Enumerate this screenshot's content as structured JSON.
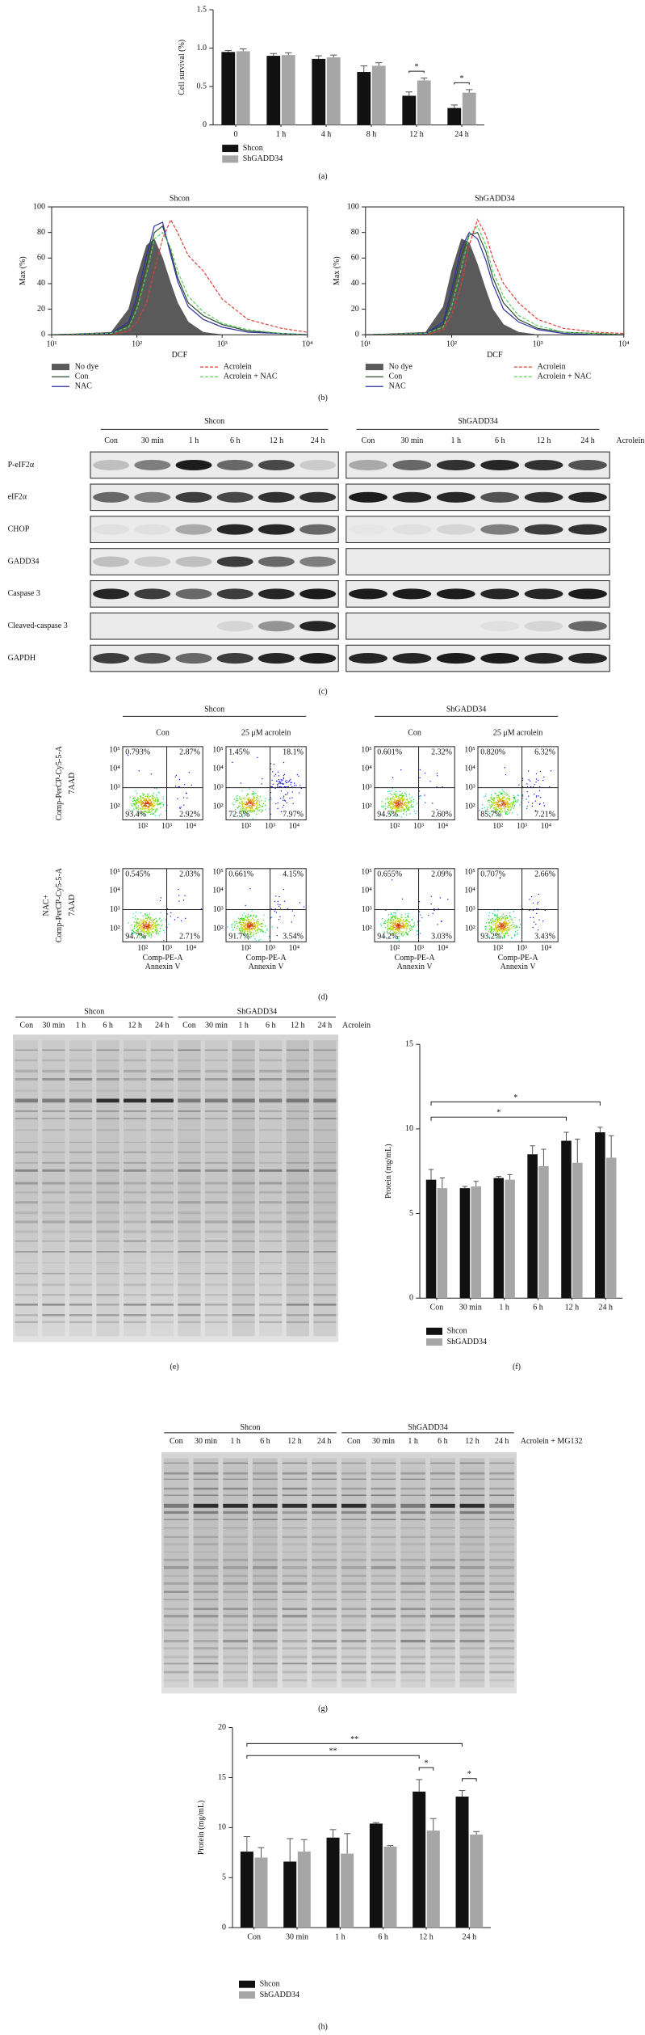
{
  "chart_data": [
    {
      "type": "bar",
      "ylabel": "Cell survival (%)",
      "categories": [
        "0",
        "1 h",
        "4 h",
        "8 h",
        "12 h",
        "24 h"
      ],
      "series": [
        {
          "name": "Shcon",
          "color": "#111111",
          "values": [
            0.95,
            0.9,
            0.86,
            0.69,
            0.38,
            0.22
          ],
          "errors": [
            0.02,
            0.03,
            0.04,
            0.08,
            0.05,
            0.04
          ]
        },
        {
          "name": "ShGADD34",
          "color": "#a6a6a6",
          "values": [
            0.96,
            0.91,
            0.88,
            0.77,
            0.58,
            0.42
          ],
          "errors": [
            0.03,
            0.03,
            0.03,
            0.04,
            0.03,
            0.04
          ]
        }
      ],
      "ylim": [
        0,
        1.5
      ],
      "yticks": [
        0,
        0.5,
        {
          "value": 1,
          "label": "1.0"
        },
        1.5
      ],
      "significance": [
        {
          "from": "12 h",
          "to": "12 h",
          "label": "*"
        },
        {
          "from": "24 h",
          "to": "24 h",
          "label": "*"
        }
      ]
    },
    {
      "type": "line",
      "title": "Shcon",
      "xlabel": "DCF",
      "ylabel": "Max (%)",
      "xscale": "log",
      "x": [
        10,
        50,
        80,
        100,
        130,
        160,
        200,
        250,
        300,
        400,
        600,
        1000,
        2000,
        5000,
        10000
      ],
      "xlim": [
        10,
        10000
      ],
      "xticks": [
        {
          "value": 10,
          "label": "10¹"
        },
        {
          "value": 100,
          "label": "10²"
        },
        {
          "value": 1000,
          "label": "10³"
        },
        {
          "value": 10000,
          "label": "10⁴"
        }
      ],
      "ylim": [
        0,
        100
      ],
      "yticks": [
        0,
        20,
        40,
        60,
        80,
        100
      ],
      "series": [
        {
          "name": "No dye",
          "color": "#5a5a5a",
          "fill": true,
          "values": [
            0,
            2,
            20,
            45,
            70,
            75,
            60,
            40,
            25,
            10,
            2,
            0,
            0,
            0,
            0
          ]
        },
        {
          "name": "Con",
          "color": "#2e4d2e",
          "values": [
            0,
            1,
            8,
            25,
            55,
            80,
            85,
            65,
            45,
            25,
            15,
            8,
            3,
            1,
            0
          ]
        },
        {
          "name": "NAC",
          "color": "#2b2f9e",
          "values": [
            0,
            1,
            10,
            30,
            62,
            85,
            88,
            62,
            42,
            22,
            12,
            6,
            2,
            1,
            0
          ]
        },
        {
          "name": "Acrolein",
          "color": "#e0403a",
          "dash": true,
          "values": [
            0,
            0,
            3,
            10,
            25,
            50,
            75,
            90,
            80,
            62,
            50,
            28,
            12,
            5,
            2
          ]
        },
        {
          "name": "Acrolein + NAC",
          "color": "#5ccf5c",
          "dash": true,
          "values": [
            0,
            1,
            6,
            20,
            48,
            75,
            80,
            68,
            50,
            30,
            18,
            9,
            4,
            1,
            0
          ]
        }
      ]
    },
    {
      "type": "line",
      "title": "ShGADD34",
      "xlabel": "DCF",
      "ylabel": "Max (%)",
      "xscale": "log",
      "x": [
        10,
        50,
        80,
        100,
        130,
        160,
        200,
        250,
        300,
        400,
        600,
        1000,
        2000,
        5000,
        10000
      ],
      "xlim": [
        10,
        10000
      ],
      "xticks": [
        {
          "value": 10,
          "label": "10¹"
        },
        {
          "value": 100,
          "label": "10²"
        },
        {
          "value": 1000,
          "label": "10³"
        },
        {
          "value": 10000,
          "label": "10⁴"
        }
      ],
      "ylim": [
        0,
        100
      ],
      "yticks": [
        0,
        20,
        40,
        60,
        80,
        100
      ],
      "series": [
        {
          "name": "No dye",
          "color": "#5a5a5a",
          "fill": true,
          "values": [
            0,
            2,
            22,
            50,
            75,
            72,
            55,
            35,
            20,
            8,
            2,
            0,
            0,
            0,
            0
          ]
        },
        {
          "name": "Con",
          "color": "#2e4d2e",
          "values": [
            0,
            1,
            8,
            30,
            62,
            78,
            80,
            65,
            45,
            25,
            12,
            5,
            2,
            1,
            0
          ]
        },
        {
          "name": "NAC",
          "color": "#2b2f9e",
          "values": [
            0,
            1,
            10,
            35,
            68,
            80,
            75,
            58,
            40,
            20,
            10,
            4,
            1,
            0,
            0
          ]
        },
        {
          "name": "Acrolein",
          "color": "#e0403a",
          "dash": true,
          "values": [
            0,
            0,
            4,
            15,
            40,
            70,
            90,
            78,
            60,
            40,
            25,
            12,
            5,
            2,
            1
          ]
        },
        {
          "name": "Acrolein + NAC",
          "color": "#5ccf5c",
          "dash": true,
          "values": [
            0,
            1,
            6,
            22,
            52,
            78,
            85,
            70,
            50,
            30,
            15,
            7,
            2,
            1,
            0
          ]
        }
      ]
    },
    {
      "type": "bar",
      "ylabel": "Protein (mg/mL)",
      "categories": [
        "Con",
        "30 min",
        "1 h",
        "6 h",
        "12 h",
        "24 h"
      ],
      "series": [
        {
          "name": "Shcon",
          "color": "#111111",
          "values": [
            7,
            6.5,
            7.1,
            8.5,
            9.3,
            9.8
          ],
          "errors": [
            0.6,
            0.1,
            0.1,
            0.5,
            0.5,
            0.3
          ]
        },
        {
          "name": "ShGADD34",
          "color": "#a6a6a6",
          "values": [
            6.5,
            6.6,
            7,
            7.8,
            8,
            8.3
          ],
          "errors": [
            0.6,
            0.3,
            0.3,
            1,
            1.4,
            1.3
          ]
        }
      ],
      "ylim": [
        0,
        15
      ],
      "yticks": [
        0,
        5,
        10,
        15
      ],
      "significance": [
        {
          "from": "Con",
          "to": "12 h",
          "label": "*"
        },
        {
          "from": "Con",
          "to": "24 h",
          "label": "*"
        }
      ]
    },
    {
      "type": "bar",
      "ylabel": "Protein (mg/mL)",
      "categories": [
        "Con",
        "30 min",
        "1 h",
        "6 h",
        "12 h",
        "24 h"
      ],
      "series": [
        {
          "name": "Shcon",
          "color": "#111111",
          "values": [
            7.6,
            6.6,
            9,
            10.4,
            13.6,
            13.1
          ],
          "errors": [
            1.5,
            2.3,
            0.8,
            0.1,
            1.2,
            0.6
          ]
        },
        {
          "name": "ShGADD34",
          "color": "#a6a6a6",
          "values": [
            7,
            7.6,
            7.4,
            8.1,
            9.7,
            9.3
          ],
          "errors": [
            1,
            1.2,
            2,
            0.1,
            1.2,
            0.3
          ]
        }
      ],
      "ylim": [
        0,
        20
      ],
      "yticks": [
        0,
        5,
        10,
        15,
        20
      ],
      "significance": [
        {
          "from": "12 h",
          "to": "12 h",
          "label": "*"
        },
        {
          "from": "24 h",
          "to": "24 h",
          "label": "*"
        },
        {
          "from": "Con",
          "to": "12 h",
          "label": "**"
        },
        {
          "from": "Con",
          "to": "24 h",
          "label": "**"
        }
      ]
    }
  ],
  "captions": {
    "a": "(a)",
    "b": "(b)",
    "c": "(c)",
    "d": "(d)",
    "e": "(e)",
    "f": "(f)",
    "g": "(g)",
    "h": "(h)"
  },
  "blots": {
    "groups": [
      "Shcon",
      "ShGADD34"
    ],
    "lanes": [
      "Con",
      "30 min",
      "1 h",
      "6 h",
      "12 h",
      "24 h"
    ],
    "treatment": "Acrolein",
    "rows": [
      {
        "label": "P-eIF2α",
        "intensity": [
          [
            0.2,
            0.5,
            0.95,
            0.6,
            0.75,
            0.15
          ],
          [
            0.3,
            0.6,
            0.85,
            0.9,
            0.85,
            0.7
          ]
        ]
      },
      {
        "label": "eIF2α",
        "intensity": [
          [
            0.6,
            0.5,
            0.8,
            0.75,
            0.85,
            0.85
          ],
          [
            0.95,
            0.9,
            0.9,
            0.7,
            0.85,
            0.9
          ]
        ]
      },
      {
        "label": "CHOP",
        "intensity": [
          [
            0.05,
            0.05,
            0.3,
            0.9,
            0.9,
            0.6
          ],
          [
            0.02,
            0.05,
            0.1,
            0.5,
            0.8,
            0.85
          ]
        ]
      },
      {
        "label": "GADD34",
        "intensity": [
          [
            0.2,
            0.15,
            0.2,
            0.8,
            0.6,
            0.5
          ],
          [
            0,
            0,
            0,
            0,
            0,
            0
          ]
        ]
      },
      {
        "label": "Caspase 3",
        "intensity": [
          [
            0.9,
            0.8,
            0.6,
            0.8,
            0.9,
            0.95
          ],
          [
            0.95,
            0.95,
            0.95,
            0.9,
            0.9,
            0.95
          ]
        ]
      },
      {
        "label": "Cleaved-caspase 3",
        "intensity": [
          [
            0,
            0,
            0,
            0.1,
            0.4,
            0.9
          ],
          [
            0,
            0,
            0,
            0.05,
            0.1,
            0.6
          ]
        ]
      },
      {
        "label": "GAPDH",
        "intensity": [
          [
            0.8,
            0.7,
            0.6,
            0.8,
            0.9,
            0.95
          ],
          [
            0.9,
            0.9,
            0.95,
            0.95,
            0.9,
            0.9
          ]
        ]
      }
    ]
  },
  "flow": {
    "groups": [
      "Shcon",
      "ShGADD34"
    ],
    "conditions": [
      "Con",
      "25 μM acrolein"
    ],
    "row_labels": [
      [
        "Comp-PerCP-Cy5-5-A",
        "7AAD"
      ],
      [
        "NAC+",
        "Comp-PerCP-Cy5-5-A",
        "7AAD"
      ]
    ],
    "yticks": [
      "10⁵",
      "10⁴",
      "10³",
      "10²"
    ],
    "xticks": [
      "10²",
      "10³",
      "10⁴"
    ],
    "xlabel": [
      "Comp-PE-A",
      "Annexin V"
    ],
    "plots": [
      [
        [
          "0.793%",
          "2.87%",
          "93.4%",
          "2.92%"
        ],
        [
          "1.45%",
          "18.1%",
          "72.5%",
          "7.97%"
        ],
        [
          "0.601%",
          "2.32%",
          "94.5%",
          "2.60%"
        ],
        [
          "0.820%",
          "6.32%",
          "85.7%",
          "7.21%"
        ]
      ],
      [
        [
          "0.545%",
          "2.03%",
          "94.7%",
          "2.71%"
        ],
        [
          "0.661%",
          "4.15%",
          "91.7%",
          "3.54%"
        ],
        [
          "0.655%",
          "2.09%",
          "94.2%",
          "3.03%"
        ],
        [
          "0.707%",
          "2.66%",
          "93.2%",
          "3.43%"
        ]
      ]
    ]
  },
  "gel_e": {
    "groups": [
      "Shcon",
      "ShGADD34"
    ],
    "lanes": [
      "Con",
      "30 min",
      "1 h",
      "6 h",
      "12 h",
      "24 h",
      "Con",
      "30 min",
      "1 h",
      "6 h",
      "12 h",
      "24 h"
    ],
    "treatment": "Acrolein"
  },
  "gel_g": {
    "groups": [
      "Shcon",
      "ShGADD34"
    ],
    "lanes": [
      "Con",
      "30 min",
      "1 h",
      "6 h",
      "12 h",
      "24 h",
      "Con",
      "30 min",
      "1 h",
      "6 h",
      "12 h",
      "24 h"
    ],
    "treatment": "Acrolein + MG132"
  }
}
